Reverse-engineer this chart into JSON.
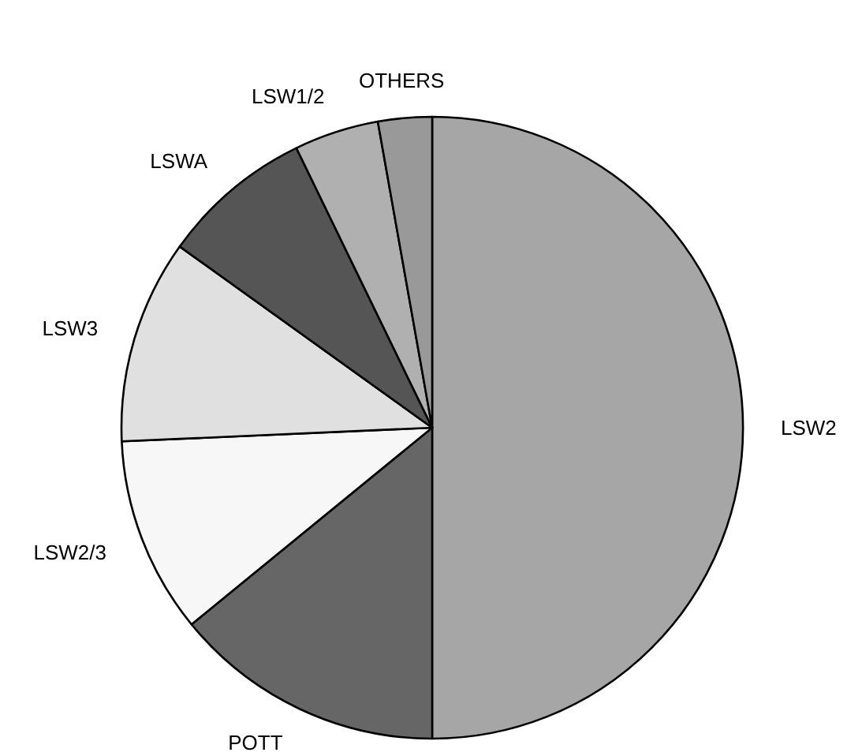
{
  "chart_data": {
    "type": "pie",
    "categories": [
      "LSW2",
      "POTT",
      "LSW2/3",
      "LSW3",
      "LSWA",
      "LSW1/2",
      "OTHERS"
    ],
    "values": [
      50,
      14.1,
      10.2,
      10.6,
      7.9,
      4.4,
      2.8
    ],
    "colors": [
      "#a6a6a6",
      "#666666",
      "#f7f7f7",
      "#e0e0e0",
      "#555555",
      "#b0b0b0",
      "#999999"
    ]
  }
}
